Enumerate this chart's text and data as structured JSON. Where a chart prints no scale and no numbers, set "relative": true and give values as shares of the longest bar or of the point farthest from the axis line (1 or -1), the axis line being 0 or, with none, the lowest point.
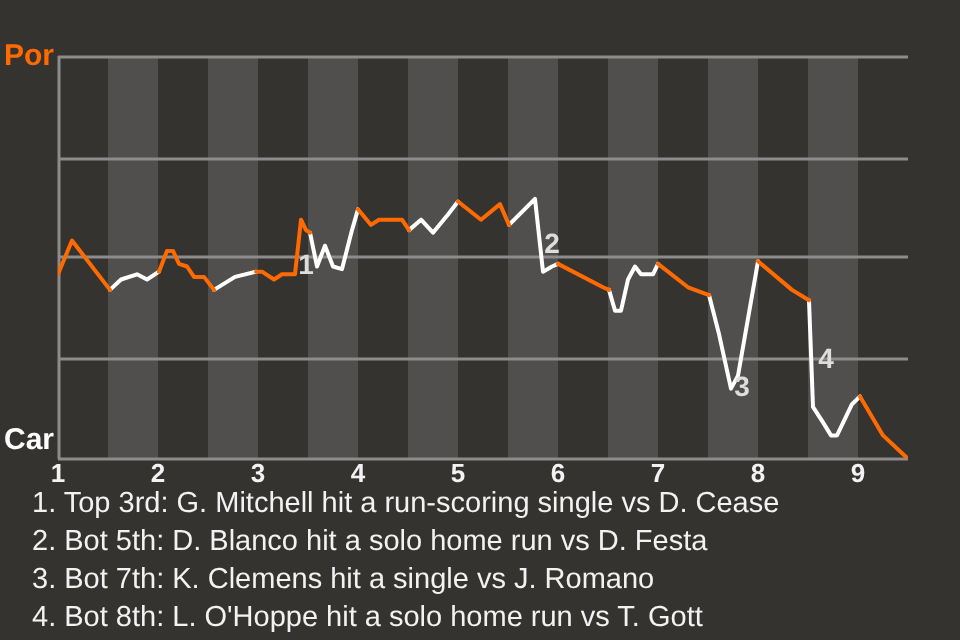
{
  "chart_data": {
    "type": "line",
    "relative": true,
    "x": [
      1.0,
      1.14,
      1.52,
      1.63,
      1.79,
      1.89,
      2.01,
      2.09,
      2.15,
      2.21,
      2.29,
      2.36,
      2.46,
      2.56,
      2.77,
      2.98,
      3.04,
      3.16,
      3.24,
      3.37,
      3.43,
      3.48,
      3.52,
      3.59,
      3.67,
      3.75,
      3.84,
      3.94,
      4.0,
      4.13,
      4.21,
      4.44,
      4.51,
      4.63,
      4.75,
      4.9,
      5.0,
      5.23,
      5.42,
      5.51,
      5.77,
      5.85,
      5.94,
      6.0,
      6.45,
      6.51,
      6.57,
      6.63,
      6.7,
      6.77,
      6.83,
      6.95,
      7.0,
      7.3,
      7.51,
      7.61,
      7.73,
      7.8,
      8.0,
      8.34,
      8.51,
      8.55,
      8.65,
      8.73,
      8.79,
      8.94,
      9.02,
      9.25,
      9.5
    ],
    "series": [
      {
        "color": "#ff6a00",
        "values": [
          0.71,
          0.84,
          0.65,
          null,
          null,
          null,
          0.72,
          0.8,
          0.8,
          0.75,
          0.74,
          0.7,
          0.7,
          0.65,
          null,
          0.72,
          0.72,
          0.69,
          0.71,
          0.71,
          0.92,
          0.88,
          0.87,
          null,
          null,
          null,
          null,
          null,
          0.96,
          0.9,
          0.92,
          0.92,
          0.88,
          null,
          null,
          null,
          0.99,
          0.92,
          0.98,
          0.9,
          null,
          null,
          null,
          0.75,
          0.66,
          0.65,
          null,
          null,
          null,
          null,
          null,
          null,
          0.75,
          0.66,
          0.63,
          null,
          null,
          null,
          0.76,
          0.65,
          0.61,
          null,
          null,
          null,
          null,
          null,
          0.24,
          0.09,
          0
        ]
      },
      {
        "color": "#ffffff",
        "values": [
          null,
          null,
          0.65,
          0.69,
          0.71,
          0.69,
          0.72,
          null,
          null,
          null,
          null,
          null,
          null,
          0.65,
          0.7,
          0.72,
          null,
          null,
          null,
          null,
          null,
          null,
          0.87,
          0.74,
          0.82,
          0.74,
          0.73,
          0.88,
          0.96,
          null,
          null,
          null,
          0.88,
          0.92,
          0.87,
          0.94,
          0.99,
          null,
          null,
          0.9,
          1,
          0.72,
          0.74,
          0.75,
          null,
          0.65,
          0.57,
          0.57,
          0.69,
          0.74,
          0.71,
          0.71,
          0.75,
          null,
          0.63,
          0.48,
          0.27,
          0.32,
          0.76,
          null,
          0.61,
          0.2,
          0.14,
          0.09,
          0.09,
          0.21,
          0.24,
          null,
          null
        ]
      }
    ],
    "xlim": [
      1,
      9.5
    ],
    "xticks": [
      1,
      2,
      3,
      4,
      5,
      6,
      7,
      8,
      9
    ],
    "marker": "none",
    "ref_lines": [
      {
        "axis": "y",
        "value": 0,
        "label": "Car",
        "color": "#8c8c8c"
      },
      {
        "axis": "y",
        "value": 0.39,
        "label": null,
        "color": "#8c8c8c"
      },
      {
        "axis": "y",
        "value": 0.78,
        "label": null,
        "color": "#8c8c8c"
      },
      {
        "axis": "y",
        "value": 1.16,
        "label": null,
        "color": "#8c8c8c"
      },
      {
        "axis": "y",
        "value": 1.55,
        "label": "Por",
        "color": "#8c8c8c"
      }
    ],
    "bands": [
      {
        "axis": "x",
        "from": 1.5,
        "to": 2,
        "color": "#504f4d"
      },
      {
        "axis": "x",
        "from": 2.5,
        "to": 3,
        "color": "#504f4d"
      },
      {
        "axis": "x",
        "from": 3.5,
        "to": 4,
        "color": "#504f4d"
      },
      {
        "axis": "x",
        "from": 4.5,
        "to": 5,
        "color": "#504f4d"
      },
      {
        "axis": "x",
        "from": 5.5,
        "to": 6,
        "color": "#504f4d"
      },
      {
        "axis": "x",
        "from": 6.5,
        "to": 7,
        "color": "#504f4d"
      },
      {
        "axis": "x",
        "from": 7.5,
        "to": 8,
        "color": "#504f4d"
      },
      {
        "axis": "x",
        "from": 8.5,
        "to": 9,
        "color": "#504f4d"
      }
    ],
    "annotations": [
      {
        "text": "1",
        "x": 3.48,
        "y": 0.74
      },
      {
        "text": "2",
        "x": 5.94,
        "y": 0.82
      },
      {
        "text": "3",
        "x": 7.84,
        "y": 0.27
      },
      {
        "text": "4",
        "x": 8.68,
        "y": 0.38
      },
      "1. Top 3rd: G. Mitchell hit a run-scoring single vs D. Cease",
      "2. Bot 5th: D. Blanco hit a solo home run vs D. Festa",
      "3. Bot 7th: K. Clemens hit a single vs J. Romano",
      "4. Bot 8th: L. O'Hoppe hit a solo home run vs T. Gott"
    ]
  }
}
